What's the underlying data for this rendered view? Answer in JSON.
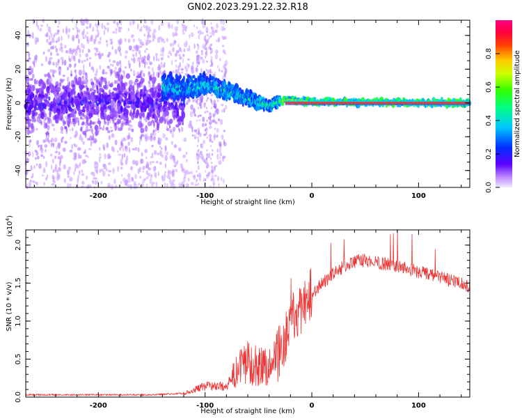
{
  "title": "GN02.2023.291.22.32.R18",
  "colors": {
    "snr_line": "#ee3333",
    "line_center": "#e8304a"
  },
  "chart_data": [
    {
      "type": "heatmap",
      "xlabel": "Height of straight line (km)",
      "ylabel": "Frequency (Hz)",
      "xlim": [
        -268,
        148
      ],
      "ylim": [
        -50,
        49
      ],
      "xticks": [
        "-200",
        "-100",
        "0",
        "100"
      ],
      "yticks": [
        "40",
        "20",
        "0",
        "-20",
        "-40"
      ],
      "colorbar": {
        "label": "Normalized spectral amplitude",
        "range": [
          0,
          1
        ],
        "ticks": [
          "0.0",
          "0.2",
          "0.4",
          "0.6",
          "0.8"
        ],
        "colormap": "rainbow (violet-blue-cyan-green-yellow-red-magenta)"
      },
      "features": {
        "noise_region_km": [
          -268,
          -95
        ],
        "signal_onset_km": -140,
        "frequency_trend": [
          {
            "x": -140,
            "y": 10
          },
          {
            "x": -120,
            "y": 8
          },
          {
            "x": -100,
            "y": 11
          },
          {
            "x": -85,
            "y": 8
          },
          {
            "x": -70,
            "y": 5
          },
          {
            "x": -55,
            "y": 2
          },
          {
            "x": -40,
            "y": -2
          },
          {
            "x": -30,
            "y": 1
          },
          {
            "x": -20,
            "y": 2
          },
          {
            "x": 0,
            "y": 0.5
          },
          {
            "x": 148,
            "y": 0
          }
        ]
      }
    },
    {
      "type": "line",
      "xlabel": "Height of straight line (km)",
      "ylabel": "SNR (10 * v/v)",
      "yscale_label": "(x10",
      "yscale_exp": "4",
      "yscale_suffix": ")",
      "xlim": [
        -268,
        148
      ],
      "ylim": [
        0,
        2.2
      ],
      "xticks": [
        "-200",
        "-100",
        "0",
        "100"
      ],
      "yticks": [
        "0.0",
        "0.5",
        "1.0",
        "1.5",
        "2.0"
      ],
      "envelope": [
        {
          "x": -268,
          "y": 0.02
        },
        {
          "x": -150,
          "y": 0.02
        },
        {
          "x": -120,
          "y": 0.04
        },
        {
          "x": -100,
          "y": 0.12
        },
        {
          "x": -80,
          "y": 0.12
        },
        {
          "x": -70,
          "y": 0.25
        },
        {
          "x": -60,
          "y": 0.35
        },
        {
          "x": -50,
          "y": 0.3
        },
        {
          "x": -40,
          "y": 0.3
        },
        {
          "x": -30,
          "y": 0.45
        },
        {
          "x": -20,
          "y": 1.0
        },
        {
          "x": -10,
          "y": 1.1
        },
        {
          "x": 0,
          "y": 1.35
        },
        {
          "x": 10,
          "y": 1.5
        },
        {
          "x": 20,
          "y": 1.62
        },
        {
          "x": 30,
          "y": 1.72
        },
        {
          "x": 45,
          "y": 1.8
        },
        {
          "x": 60,
          "y": 1.78
        },
        {
          "x": 80,
          "y": 1.72
        },
        {
          "x": 100,
          "y": 1.65
        },
        {
          "x": 120,
          "y": 1.58
        },
        {
          "x": 148,
          "y": 1.45
        }
      ]
    }
  ]
}
